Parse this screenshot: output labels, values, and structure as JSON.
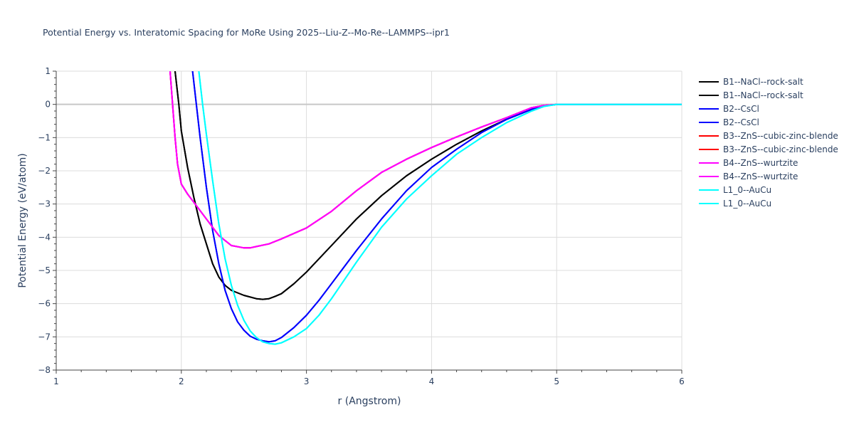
{
  "chart_data": {
    "type": "line",
    "title": "Potential Energy vs. Interatomic Spacing for MoRe Using 2025--Liu-Z--Mo-Re--LAMMPS--ipr1",
    "xlabel": "r (Angstrom)",
    "ylabel": "Potential Energy (eV/atom)",
    "xlim": [
      1,
      6
    ],
    "ylim": [
      -8,
      1
    ],
    "xticks": [
      1,
      2,
      3,
      4,
      5,
      6
    ],
    "xtick_labels": [
      "1",
      "2",
      "3",
      "4",
      "5",
      "6"
    ],
    "yticks": [
      1,
      0,
      -1,
      -2,
      -3,
      -4,
      -5,
      -6,
      -7,
      -8
    ],
    "ytick_labels": [
      "1",
      "0",
      "−1",
      "−2",
      "−3",
      "−4",
      "−5",
      "−6",
      "−7",
      "−8"
    ],
    "grid": true,
    "legend_position": "right",
    "series": [
      {
        "name": "B1--NaCl--rock-salt",
        "color": "#000000",
        "x": [
          1.95,
          1.98,
          2.0,
          2.05,
          2.1,
          2.15,
          2.2,
          2.25,
          2.3,
          2.35,
          2.4,
          2.5,
          2.6,
          2.65,
          2.7,
          2.75,
          2.8,
          2.9,
          3.0,
          3.2,
          3.4,
          3.6,
          3.8,
          4.0,
          4.2,
          4.4,
          4.6,
          4.8,
          4.9,
          5.0,
          5.2,
          5.5,
          6.0
        ],
        "y": [
          1.0,
          0.0,
          -0.8,
          -1.9,
          -2.8,
          -3.6,
          -4.2,
          -4.8,
          -5.2,
          -5.45,
          -5.6,
          -5.75,
          -5.85,
          -5.87,
          -5.85,
          -5.78,
          -5.7,
          -5.4,
          -5.05,
          -4.25,
          -3.45,
          -2.75,
          -2.15,
          -1.65,
          -1.2,
          -0.8,
          -0.45,
          -0.15,
          -0.05,
          0.0,
          0.0,
          0.0,
          0.0
        ]
      },
      {
        "name": "B1--NaCl--rock-salt",
        "color": "#000000",
        "x": [
          1.95,
          1.98,
          2.0,
          2.05,
          2.1,
          2.15,
          2.2,
          2.25,
          2.3,
          2.35,
          2.4,
          2.5,
          2.6,
          2.65,
          2.7,
          2.75,
          2.8,
          2.9,
          3.0,
          3.2,
          3.4,
          3.6,
          3.8,
          4.0,
          4.2,
          4.4,
          4.6,
          4.8,
          4.9,
          5.0,
          5.2,
          5.5,
          6.0
        ],
        "y": [
          1.0,
          0.0,
          -0.8,
          -1.9,
          -2.8,
          -3.6,
          -4.2,
          -4.8,
          -5.2,
          -5.45,
          -5.6,
          -5.75,
          -5.85,
          -5.87,
          -5.85,
          -5.78,
          -5.7,
          -5.4,
          -5.05,
          -4.25,
          -3.45,
          -2.75,
          -2.15,
          -1.65,
          -1.2,
          -0.8,
          -0.45,
          -0.15,
          -0.05,
          0.0,
          0.0,
          0.0,
          0.0
        ]
      },
      {
        "name": "B2--CsCl",
        "color": "#0000ff",
        "x": [
          2.09,
          2.12,
          2.15,
          2.2,
          2.25,
          2.3,
          2.35,
          2.4,
          2.45,
          2.5,
          2.55,
          2.6,
          2.65,
          2.7,
          2.75,
          2.8,
          2.9,
          3.0,
          3.1,
          3.2,
          3.4,
          3.6,
          3.8,
          4.0,
          4.2,
          4.4,
          4.6,
          4.8,
          4.9,
          5.0,
          5.2,
          5.5,
          6.0
        ],
        "y": [
          1.0,
          0.0,
          -1.0,
          -2.5,
          -3.8,
          -4.8,
          -5.6,
          -6.15,
          -6.55,
          -6.8,
          -6.98,
          -7.07,
          -7.12,
          -7.15,
          -7.12,
          -7.02,
          -6.72,
          -6.35,
          -5.9,
          -5.4,
          -4.4,
          -3.45,
          -2.6,
          -1.9,
          -1.35,
          -0.85,
          -0.45,
          -0.15,
          -0.05,
          0.0,
          0.0,
          0.0,
          0.0
        ]
      },
      {
        "name": "B2--CsCl",
        "color": "#0000ff",
        "x": [
          2.09,
          2.12,
          2.15,
          2.2,
          2.25,
          2.3,
          2.35,
          2.4,
          2.45,
          2.5,
          2.55,
          2.6,
          2.65,
          2.7,
          2.75,
          2.8,
          2.9,
          3.0,
          3.1,
          3.2,
          3.4,
          3.6,
          3.8,
          4.0,
          4.2,
          4.4,
          4.6,
          4.8,
          4.9,
          5.0,
          5.2,
          5.5,
          6.0
        ],
        "y": [
          1.0,
          0.0,
          -1.0,
          -2.5,
          -3.8,
          -4.8,
          -5.6,
          -6.15,
          -6.55,
          -6.8,
          -6.98,
          -7.07,
          -7.12,
          -7.15,
          -7.12,
          -7.02,
          -6.72,
          -6.35,
          -5.9,
          -5.4,
          -4.4,
          -3.45,
          -2.6,
          -1.9,
          -1.35,
          -0.85,
          -0.45,
          -0.15,
          -0.05,
          0.0,
          0.0,
          0.0,
          0.0
        ]
      },
      {
        "name": "B3--ZnS--cubic-zinc-blende",
        "color": "#ff0000",
        "x": [
          1.91,
          1.93,
          1.95,
          1.97,
          2.0,
          2.05,
          2.1,
          2.2,
          2.3,
          2.4,
          2.5,
          2.55,
          2.6,
          2.7,
          2.8,
          3.0,
          3.2,
          3.4,
          3.6,
          3.8,
          4.0,
          4.2,
          4.4,
          4.6,
          4.8,
          4.9,
          5.0,
          5.2,
          5.5,
          6.0
        ],
        "y": [
          1.0,
          0.0,
          -1.0,
          -1.8,
          -2.4,
          -2.7,
          -2.95,
          -3.45,
          -3.95,
          -4.25,
          -4.32,
          -4.32,
          -4.28,
          -4.2,
          -4.05,
          -3.72,
          -3.22,
          -2.6,
          -2.05,
          -1.65,
          -1.3,
          -0.98,
          -0.68,
          -0.4,
          -0.1,
          -0.03,
          0.0,
          0.0,
          0.0,
          0.0
        ]
      },
      {
        "name": "B3--ZnS--cubic-zinc-blende",
        "color": "#ff0000",
        "x": [
          1.91,
          1.93,
          1.95,
          1.97,
          2.0,
          2.05,
          2.1,
          2.2,
          2.3,
          2.4,
          2.5,
          2.55,
          2.6,
          2.7,
          2.8,
          3.0,
          3.2,
          3.4,
          3.6,
          3.8,
          4.0,
          4.2,
          4.4,
          4.6,
          4.8,
          4.9,
          5.0,
          5.2,
          5.5,
          6.0
        ],
        "y": [
          1.0,
          0.0,
          -1.0,
          -1.8,
          -2.4,
          -2.7,
          -2.95,
          -3.45,
          -3.95,
          -4.25,
          -4.32,
          -4.32,
          -4.28,
          -4.2,
          -4.05,
          -3.72,
          -3.22,
          -2.6,
          -2.05,
          -1.65,
          -1.3,
          -0.98,
          -0.68,
          -0.4,
          -0.1,
          -0.03,
          0.0,
          0.0,
          0.0,
          0.0
        ]
      },
      {
        "name": "B4--ZnS--wurtzite",
        "color": "#ff00ff",
        "x": [
          1.91,
          1.93,
          1.95,
          1.97,
          2.0,
          2.05,
          2.1,
          2.2,
          2.3,
          2.4,
          2.5,
          2.55,
          2.6,
          2.7,
          2.8,
          3.0,
          3.2,
          3.4,
          3.6,
          3.8,
          4.0,
          4.2,
          4.4,
          4.6,
          4.8,
          4.9,
          5.0,
          5.2,
          5.5,
          6.0
        ],
        "y": [
          1.0,
          0.0,
          -1.0,
          -1.8,
          -2.4,
          -2.7,
          -2.95,
          -3.45,
          -3.95,
          -4.25,
          -4.32,
          -4.32,
          -4.28,
          -4.2,
          -4.05,
          -3.72,
          -3.22,
          -2.6,
          -2.05,
          -1.65,
          -1.3,
          -0.98,
          -0.68,
          -0.4,
          -0.1,
          -0.03,
          0.0,
          0.0,
          0.0,
          0.0
        ]
      },
      {
        "name": "B4--ZnS--wurtzite",
        "color": "#ff00ff",
        "x": [
          1.91,
          1.93,
          1.95,
          1.97,
          2.0,
          2.05,
          2.1,
          2.2,
          2.3,
          2.4,
          2.5,
          2.55,
          2.6,
          2.7,
          2.8,
          3.0,
          3.2,
          3.4,
          3.6,
          3.8,
          4.0,
          4.2,
          4.4,
          4.6,
          4.8,
          4.9,
          5.0,
          5.2,
          5.5,
          6.0
        ],
        "y": [
          1.0,
          0.0,
          -1.0,
          -1.8,
          -2.4,
          -2.7,
          -2.95,
          -3.45,
          -3.95,
          -4.25,
          -4.32,
          -4.32,
          -4.28,
          -4.2,
          -4.05,
          -3.72,
          -3.22,
          -2.6,
          -2.05,
          -1.65,
          -1.3,
          -0.98,
          -0.68,
          -0.4,
          -0.1,
          -0.03,
          0.0,
          0.0,
          0.0,
          0.0
        ]
      },
      {
        "name": "L1_0--AuCu",
        "color": "#00ffff",
        "x": [
          2.14,
          2.17,
          2.2,
          2.25,
          2.3,
          2.35,
          2.4,
          2.45,
          2.5,
          2.55,
          2.6,
          2.65,
          2.7,
          2.75,
          2.8,
          2.9,
          3.0,
          3.1,
          3.2,
          3.4,
          3.6,
          3.8,
          4.0,
          4.2,
          4.4,
          4.6,
          4.8,
          4.9,
          5.0,
          5.2,
          5.5,
          6.0
        ],
        "y": [
          1.0,
          0.0,
          -0.9,
          -2.3,
          -3.6,
          -4.65,
          -5.45,
          -6.05,
          -6.5,
          -6.82,
          -7.02,
          -7.15,
          -7.2,
          -7.22,
          -7.18,
          -7.0,
          -6.75,
          -6.35,
          -5.85,
          -4.75,
          -3.7,
          -2.85,
          -2.15,
          -1.5,
          -1.0,
          -0.55,
          -0.2,
          -0.06,
          0.0,
          0.0,
          0.0,
          0.0
        ]
      },
      {
        "name": "L1_0--AuCu",
        "color": "#00ffff",
        "x": [
          2.14,
          2.17,
          2.2,
          2.25,
          2.3,
          2.35,
          2.4,
          2.45,
          2.5,
          2.55,
          2.6,
          2.65,
          2.7,
          2.75,
          2.8,
          2.9,
          3.0,
          3.1,
          3.2,
          3.4,
          3.6,
          3.8,
          4.0,
          4.2,
          4.4,
          4.6,
          4.8,
          4.9,
          5.0,
          5.2,
          5.5,
          6.0
        ],
        "y": [
          1.0,
          0.0,
          -0.9,
          -2.3,
          -3.6,
          -4.65,
          -5.45,
          -6.05,
          -6.5,
          -6.82,
          -7.02,
          -7.15,
          -7.2,
          -7.22,
          -7.18,
          -7.0,
          -6.75,
          -6.35,
          -5.85,
          -4.75,
          -3.7,
          -2.85,
          -2.15,
          -1.5,
          -1.0,
          -0.55,
          -0.2,
          -0.06,
          0.0,
          0.0,
          0.0,
          0.0
        ]
      }
    ]
  }
}
